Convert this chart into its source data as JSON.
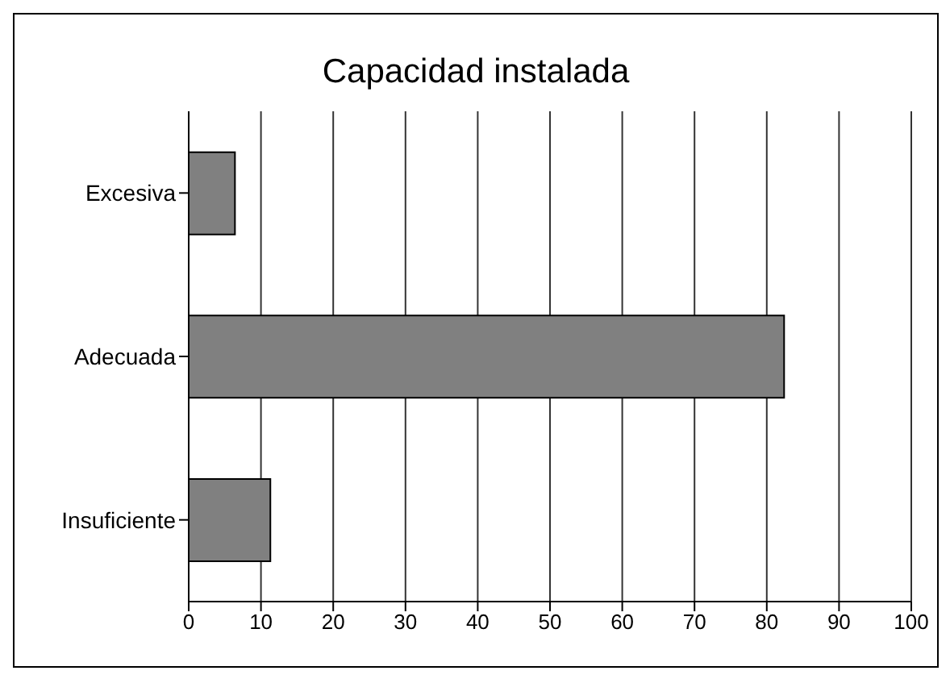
{
  "chart_data": {
    "type": "bar",
    "title": "Capacidad instalada",
    "orientation": "horizontal",
    "categories": [
      "Excesiva",
      "Adecuada",
      "Insuficiente"
    ],
    "values": [
      6.4,
      82.4,
      11.3
    ],
    "color": "#808080",
    "xlim": [
      0,
      100
    ],
    "xticks": [
      0,
      10,
      20,
      30,
      40,
      50,
      60,
      70,
      80,
      90,
      100
    ],
    "grid": "x"
  }
}
